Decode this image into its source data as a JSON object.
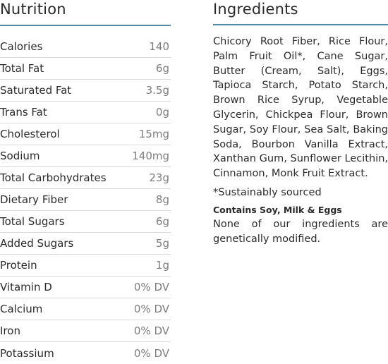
{
  "nutrition": {
    "title": "Nutrition",
    "rows": [
      {
        "label": "Calories",
        "value": "140"
      },
      {
        "label": "Total Fat",
        "value": "6g"
      },
      {
        "label": "Saturated Fat",
        "value": "3.5g"
      },
      {
        "label": "Trans Fat",
        "value": "0g"
      },
      {
        "label": "Cholesterol",
        "value": "15mg"
      },
      {
        "label": "Sodium",
        "value": "140mg"
      },
      {
        "label": "Total Carbohydrates",
        "value": "23g"
      },
      {
        "label": "Dietary Fiber",
        "value": "8g"
      },
      {
        "label": "Total Sugars",
        "value": "6g"
      },
      {
        "label": "Added Sugars",
        "value": "5g"
      },
      {
        "label": "Protein",
        "value": "1g"
      },
      {
        "label": "Vitamin D",
        "value": "0% DV"
      },
      {
        "label": "Calcium",
        "value": "0% DV"
      },
      {
        "label": "Iron",
        "value": "0% DV"
      },
      {
        "label": "Potassium",
        "value": "0% DV"
      }
    ]
  },
  "ingredients": {
    "title": "Ingredients",
    "text": "Chicory Root Fiber, Rice Flour, Palm Fruit Oil*, Cane Sugar, Butter (Cream, Salt), Eggs, Tapioca Starch, Potato Starch, Brown Rice Syrup, Vegetable Glycerin, Chickpea Flour, Brown Sugar, Soy Flour, Sea Salt, Baking Soda, Bourbon Vanilla Extract, Xanthan Gum, Sunflower Lecithin, Cinnamon, Monk Fruit Extract.",
    "note": "*Sustainably sourced",
    "allergens": "Contains Soy, Milk & Eggs",
    "gmo_statement": "None of our ingredients are genetically modified."
  },
  "colors": {
    "accent_rule": "#4e8ba3",
    "row_divider": "#d9d9d9",
    "value_text": "#7d7d7d"
  }
}
